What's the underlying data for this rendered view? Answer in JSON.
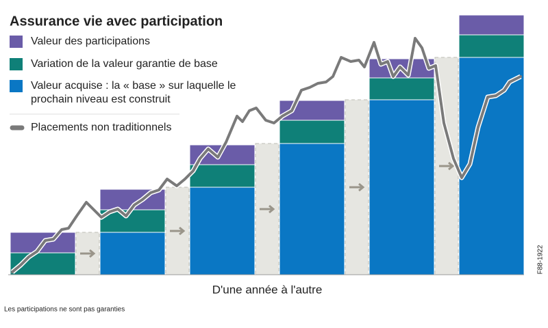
{
  "chart_data": {
    "type": "bar",
    "title": "Assurance vie avec participation",
    "x_label": "D'une année à l'autre",
    "footnote": "Les participations ne sont pas garanties",
    "code": "F88-1922",
    "categories": [
      null,
      null,
      null,
      null,
      null,
      null
    ],
    "series": [
      {
        "name": "Valeur des participations",
        "color": "#6a5ca8",
        "values": [
          30,
          30,
          29,
          29,
          28,
          29
        ]
      },
      {
        "name": "Variation de la valeur garantie de base",
        "color": "#0f8078",
        "values": [
          32,
          33,
          33,
          34,
          32,
          33
        ]
      },
      {
        "name": "Valeur acquise : la « base » sur laquelle le prochain niveau est construit",
        "color": "#0a77c4",
        "values": [
          0,
          62,
          128,
          192,
          256,
          318
        ]
      }
    ],
    "line": {
      "name": "Placements non traditionnels",
      "color": "#7a7a7a",
      "x": [
        3,
        15,
        27,
        39,
        51,
        63,
        75,
        85,
        97,
        111,
        121,
        133,
        145,
        157,
        169,
        181,
        193,
        205,
        217,
        229,
        243,
        255,
        267,
        277,
        289,
        303,
        315,
        331,
        339,
        349,
        359,
        373,
        385,
        397,
        411,
        425,
        437,
        449,
        461,
        471,
        483,
        497,
        509,
        517,
        531,
        541,
        551,
        559,
        569,
        581,
        591,
        601,
        611,
        621,
        633,
        647,
        659,
        671,
        683,
        697,
        709,
        721,
        729,
        745
      ],
      "values": [
        4,
        14,
        26,
        34,
        50,
        52,
        66,
        68,
        86,
        106,
        96,
        84,
        92,
        96,
        86,
        102,
        110,
        120,
        124,
        140,
        130,
        140,
        152,
        170,
        184,
        172,
        194,
        232,
        224,
        240,
        244,
        226,
        222,
        232,
        240,
        270,
        274,
        280,
        282,
        290,
        318,
        312,
        314,
        304,
        340,
        308,
        312,
        290,
        304,
        292,
        346,
        332,
        302,
        306,
        222,
        170,
        142,
        162,
        216,
        260,
        262,
        270,
        282,
        290
      ]
    },
    "ylim": [
      0,
      380
    ],
    "xlim": [
      0,
      747
    ]
  }
}
